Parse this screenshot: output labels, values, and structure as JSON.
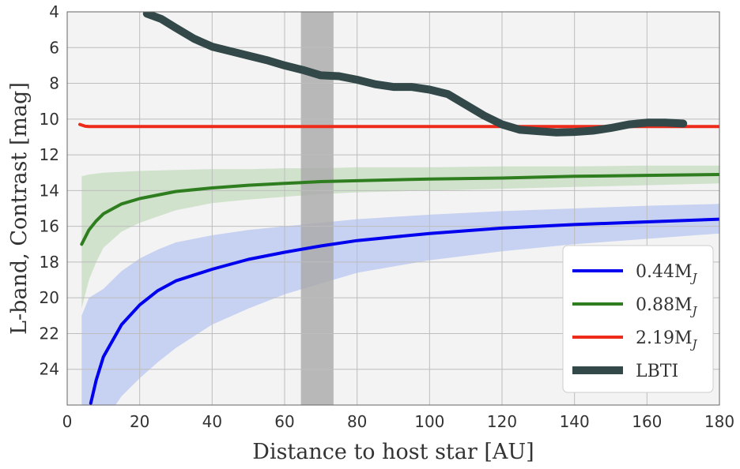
{
  "chart_data": {
    "type": "line",
    "xlabel": "Distance to host star [AU]",
    "ylabel": "L-band, Contrast [mag]",
    "xlim": [
      0,
      180
    ],
    "ylim": [
      26,
      4
    ],
    "y_axis_inverted": true,
    "grid": true,
    "legend_position": "bottom-right",
    "x_ticks": [
      0,
      20,
      40,
      60,
      80,
      100,
      120,
      140,
      160,
      180
    ],
    "y_ticks": [
      4,
      6,
      8,
      10,
      12,
      14,
      16,
      18,
      20,
      22,
      24
    ],
    "shaded_region": {
      "x": [
        64.5,
        73.5
      ],
      "color": "#a9a9a9"
    },
    "series": [
      {
        "name": "0.44M",
        "subscript": "J",
        "color": "#0000ee",
        "type": "line",
        "x": [
          6.5,
          8,
          10,
          15,
          20,
          25,
          30,
          40,
          50,
          60,
          70,
          80,
          100,
          120,
          140,
          160,
          180
        ],
        "y": [
          25.9,
          24.6,
          23.3,
          21.5,
          20.4,
          19.6,
          19.05,
          18.4,
          17.85,
          17.45,
          17.1,
          16.8,
          16.4,
          16.1,
          15.9,
          15.75,
          15.6
        ],
        "band_lower": [
          null,
          null,
          27.0,
          25.5,
          24.5,
          23.6,
          22.8,
          21.5,
          20.6,
          19.8,
          19.2,
          18.6,
          17.9,
          17.4,
          17.0,
          16.7,
          16.4
        ],
        "band_upper": [
          null,
          null,
          19.5,
          18.5,
          17.8,
          17.3,
          16.9,
          16.5,
          16.2,
          16.0,
          15.8,
          15.6,
          15.35,
          15.15,
          15.0,
          14.85,
          14.75
        ],
        "band_x": [
          4,
          6,
          10,
          15,
          20,
          25,
          30,
          40,
          50,
          60,
          70,
          80,
          100,
          120,
          140,
          160,
          180
        ],
        "band_lo_full": [
          27.0,
          27.0,
          27.0,
          25.5,
          24.5,
          23.6,
          22.8,
          21.5,
          20.6,
          19.8,
          19.2,
          18.6,
          17.9,
          17.4,
          17.0,
          16.7,
          16.4
        ],
        "band_hi_full": [
          21.0,
          20.0,
          19.5,
          18.5,
          17.8,
          17.3,
          16.9,
          16.5,
          16.2,
          16.0,
          15.8,
          15.6,
          15.35,
          15.15,
          15.0,
          14.85,
          14.75
        ],
        "band_color": "#b8c6f0"
      },
      {
        "name": "0.88M",
        "subscript": "J",
        "color": "#2e7d1f",
        "type": "line",
        "x": [
          4,
          6,
          8,
          10,
          15,
          20,
          30,
          40,
          50,
          60,
          70,
          80,
          100,
          120,
          140,
          160,
          180
        ],
        "y": [
          17.0,
          16.2,
          15.7,
          15.3,
          14.75,
          14.45,
          14.05,
          13.85,
          13.7,
          13.6,
          13.5,
          13.45,
          13.35,
          13.3,
          13.2,
          13.15,
          13.1
        ],
        "band_x": [
          4,
          6,
          8,
          10,
          15,
          20,
          30,
          40,
          50,
          60,
          70,
          80,
          100,
          120,
          140,
          160,
          180
        ],
        "band_lo_full": [
          20.6,
          19.0,
          18.0,
          17.2,
          16.3,
          15.8,
          15.1,
          14.7,
          14.5,
          14.35,
          14.2,
          14.1,
          14.0,
          13.9,
          13.8,
          13.7,
          13.6
        ],
        "band_hi_full": [
          13.2,
          13.1,
          13.05,
          13.0,
          12.95,
          12.9,
          12.85,
          12.8,
          12.8,
          12.75,
          12.75,
          12.7,
          12.7,
          12.65,
          12.65,
          12.6,
          12.6
        ],
        "band_color": "#c4dcbe"
      },
      {
        "name": "2.19M",
        "subscript": "J",
        "color": "#ee2a1a",
        "type": "line",
        "x": [
          3.5,
          5,
          6,
          10,
          20,
          40,
          60,
          80,
          100,
          120,
          140,
          160,
          180
        ],
        "y": [
          10.3,
          10.4,
          10.42,
          10.42,
          10.42,
          10.42,
          10.42,
          10.42,
          10.42,
          10.42,
          10.42,
          10.42,
          10.42
        ]
      },
      {
        "name": "LBTI",
        "color": "#334848",
        "type": "line",
        "x": [
          22,
          26,
          30,
          35,
          40,
          45,
          50,
          55,
          60,
          65,
          70,
          75,
          80,
          85,
          90,
          95,
          100,
          105,
          110,
          115,
          120,
          125,
          130,
          135,
          140,
          145,
          150,
          155,
          160,
          165,
          170
        ],
        "y": [
          4.1,
          4.4,
          4.9,
          5.5,
          5.95,
          6.2,
          6.45,
          6.7,
          7.0,
          7.25,
          7.55,
          7.6,
          7.8,
          8.05,
          8.2,
          8.2,
          8.35,
          8.6,
          9.2,
          9.8,
          10.3,
          10.6,
          10.68,
          10.75,
          10.72,
          10.65,
          10.5,
          10.3,
          10.2,
          10.2,
          10.25
        ]
      }
    ]
  }
}
